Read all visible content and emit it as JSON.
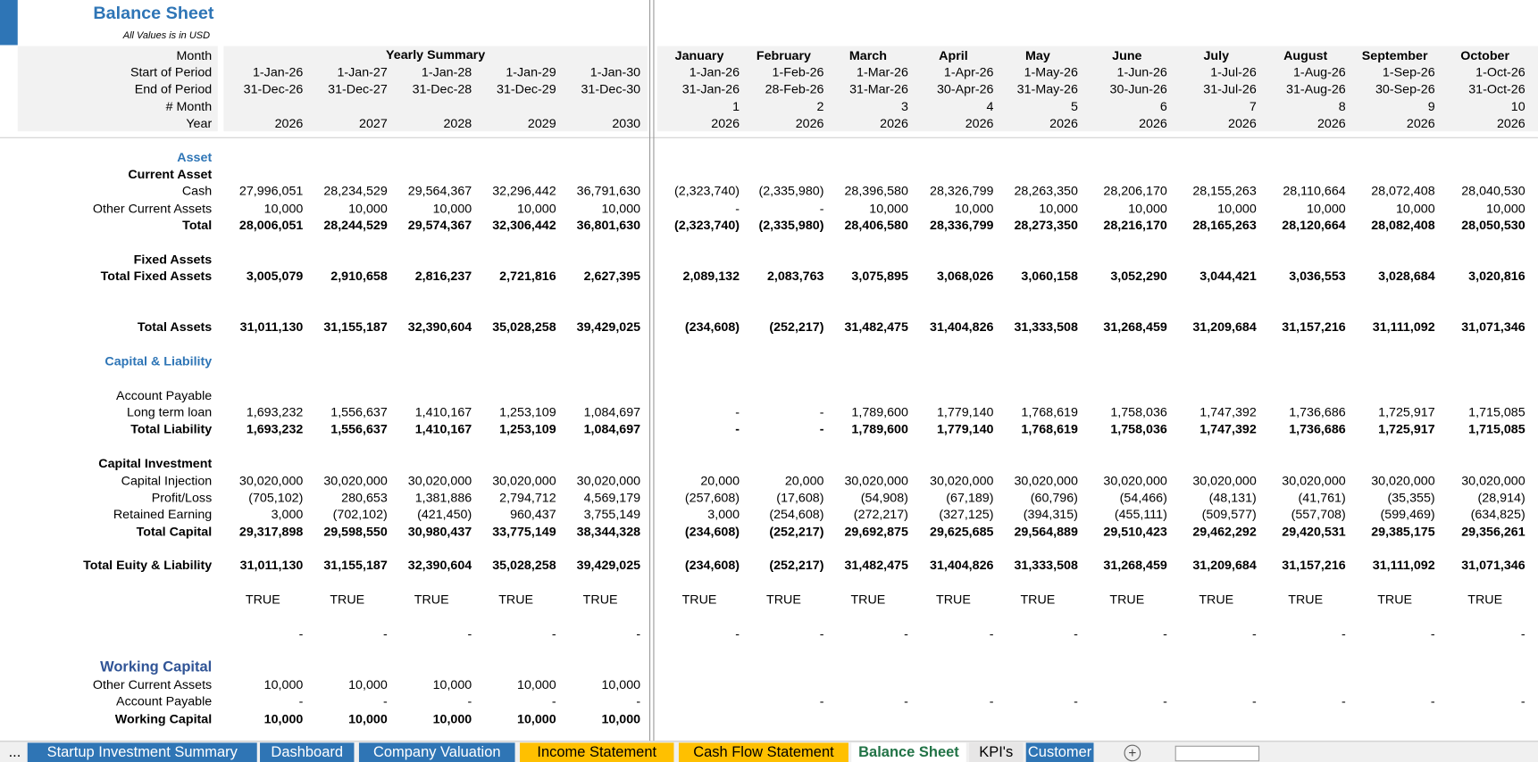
{
  "header": {
    "title": "Balance Sheet",
    "subtitle": "All Values is in USD",
    "yearly_heading": "Yearly Summary"
  },
  "rows": [
    {
      "label": "Month",
      "style": "header",
      "monthly": [
        "January",
        "February",
        "March",
        "April",
        "May",
        "June",
        "July",
        "August",
        "September",
        "October"
      ]
    },
    {
      "label": "Start of Period",
      "style": "header",
      "yearly": [
        "1-Jan-26",
        "1-Jan-27",
        "1-Jan-28",
        "1-Jan-29",
        "1-Jan-30"
      ],
      "monthly": [
        "1-Jan-26",
        "1-Feb-26",
        "1-Mar-26",
        "1-Apr-26",
        "1-May-26",
        "1-Jun-26",
        "1-Jul-26",
        "1-Aug-26",
        "1-Sep-26",
        "1-Oct-26"
      ]
    },
    {
      "label": "End of Period",
      "style": "header",
      "yearly": [
        "31-Dec-26",
        "31-Dec-27",
        "31-Dec-28",
        "31-Dec-29",
        "31-Dec-30"
      ],
      "monthly": [
        "31-Jan-26",
        "28-Feb-26",
        "31-Mar-26",
        "30-Apr-26",
        "31-May-26",
        "30-Jun-26",
        "31-Jul-26",
        "31-Aug-26",
        "30-Sep-26",
        "31-Oct-26"
      ]
    },
    {
      "label": "# Month",
      "style": "header",
      "monthly": [
        "1",
        "2",
        "3",
        "4",
        "5",
        "6",
        "7",
        "8",
        "9",
        "10"
      ]
    },
    {
      "label": "Year",
      "style": "header",
      "yearly": [
        "2026",
        "2027",
        "2028",
        "2029",
        "2030"
      ],
      "monthly": [
        "2026",
        "2026",
        "2026",
        "2026",
        "2026",
        "2026",
        "2026",
        "2026",
        "2026",
        "2026"
      ]
    },
    {
      "label": "Asset",
      "style": "section"
    },
    {
      "label": "Current Asset",
      "style": "bold"
    },
    {
      "label": "Cash",
      "style": "normal",
      "yearly": [
        "27,996,051",
        "28,234,529",
        "29,564,367",
        "32,296,442",
        "36,791,630"
      ],
      "monthly": [
        "(2,323,740)",
        "(2,335,980)",
        "28,396,580",
        "28,326,799",
        "28,263,350",
        "28,206,170",
        "28,155,263",
        "28,110,664",
        "28,072,408",
        "28,040,530"
      ]
    },
    {
      "label": "Other Current Assets",
      "style": "normal",
      "yearly": [
        "10,000",
        "10,000",
        "10,000",
        "10,000",
        "10,000"
      ],
      "monthly": [
        "-",
        "-",
        "10,000",
        "10,000",
        "10,000",
        "10,000",
        "10,000",
        "10,000",
        "10,000",
        "10,000"
      ]
    },
    {
      "label": "Total",
      "style": "bold",
      "yearly": [
        "28,006,051",
        "28,244,529",
        "29,574,367",
        "32,306,442",
        "36,801,630"
      ],
      "monthly": [
        "(2,323,740)",
        "(2,335,980)",
        "28,406,580",
        "28,336,799",
        "28,273,350",
        "28,216,170",
        "28,165,263",
        "28,120,664",
        "28,082,408",
        "28,050,530"
      ]
    },
    {
      "label": "Fixed Assets",
      "style": "bold"
    },
    {
      "label": "Total Fixed Assets",
      "style": "bold",
      "yearly": [
        "3,005,079",
        "2,910,658",
        "2,816,237",
        "2,721,816",
        "2,627,395"
      ],
      "monthly": [
        "2,089,132",
        "2,083,763",
        "3,075,895",
        "3,068,026",
        "3,060,158",
        "3,052,290",
        "3,044,421",
        "3,036,553",
        "3,028,684",
        "3,020,816"
      ]
    },
    {
      "label": "Total Assets",
      "style": "bold",
      "yearly": [
        "31,011,130",
        "31,155,187",
        "32,390,604",
        "35,028,258",
        "39,429,025"
      ],
      "monthly": [
        "(234,608)",
        "(252,217)",
        "31,482,475",
        "31,404,826",
        "31,333,508",
        "31,268,459",
        "31,209,684",
        "31,157,216",
        "31,111,092",
        "31,071,346"
      ]
    },
    {
      "label": "Capital & Liability",
      "style": "section"
    },
    {
      "label": "Account Payable",
      "style": "normal"
    },
    {
      "label": "Long term loan",
      "style": "normal",
      "yearly": [
        "1,693,232",
        "1,556,637",
        "1,410,167",
        "1,253,109",
        "1,084,697"
      ],
      "monthly": [
        "-",
        "-",
        "1,789,600",
        "1,779,140",
        "1,768,619",
        "1,758,036",
        "1,747,392",
        "1,736,686",
        "1,725,917",
        "1,715,085"
      ]
    },
    {
      "label": "Total Liability",
      "style": "bold",
      "yearly": [
        "1,693,232",
        "1,556,637",
        "1,410,167",
        "1,253,109",
        "1,084,697"
      ],
      "monthly": [
        "-",
        "-",
        "1,789,600",
        "1,779,140",
        "1,768,619",
        "1,758,036",
        "1,747,392",
        "1,736,686",
        "1,725,917",
        "1,715,085"
      ]
    },
    {
      "label": "Capital Investment",
      "style": "bold"
    },
    {
      "label": "Capital Injection",
      "style": "normal",
      "yearly": [
        "30,020,000",
        "30,020,000",
        "30,020,000",
        "30,020,000",
        "30,020,000"
      ],
      "monthly": [
        "20,000",
        "20,000",
        "30,020,000",
        "30,020,000",
        "30,020,000",
        "30,020,000",
        "30,020,000",
        "30,020,000",
        "30,020,000",
        "30,020,000"
      ]
    },
    {
      "label": "Profit/Loss",
      "style": "normal",
      "yearly": [
        "(705,102)",
        "280,653",
        "1,381,886",
        "2,794,712",
        "4,569,179"
      ],
      "monthly": [
        "(257,608)",
        "(17,608)",
        "(54,908)",
        "(67,189)",
        "(60,796)",
        "(54,466)",
        "(48,131)",
        "(41,761)",
        "(35,355)",
        "(28,914)"
      ]
    },
    {
      "label": "Retained Earning",
      "style": "normal",
      "yearly": [
        "3,000",
        "(702,102)",
        "(421,450)",
        "960,437",
        "3,755,149"
      ],
      "monthly": [
        "3,000",
        "(254,608)",
        "(272,217)",
        "(327,125)",
        "(394,315)",
        "(455,111)",
        "(509,577)",
        "(557,708)",
        "(599,469)",
        "(634,825)"
      ]
    },
    {
      "label": "Total Capital",
      "style": "bold",
      "yearly": [
        "29,317,898",
        "29,598,550",
        "30,980,437",
        "33,775,149",
        "38,344,328"
      ],
      "monthly": [
        "(234,608)",
        "(252,217)",
        "29,692,875",
        "29,625,685",
        "29,564,889",
        "29,510,423",
        "29,462,292",
        "29,420,531",
        "29,385,175",
        "29,356,261"
      ]
    },
    {
      "label": "Total Euity & Liability",
      "style": "bold",
      "yearly": [
        "31,011,130",
        "31,155,187",
        "32,390,604",
        "35,028,258",
        "39,429,025"
      ],
      "monthly": [
        "(234,608)",
        "(252,217)",
        "31,482,475",
        "31,404,826",
        "31,333,508",
        "31,268,459",
        "31,209,684",
        "31,157,216",
        "31,111,092",
        "31,071,346"
      ]
    },
    {
      "style": "check",
      "yearly": [
        "TRUE",
        "TRUE",
        "TRUE",
        "TRUE",
        "TRUE"
      ],
      "monthly": [
        "TRUE",
        "TRUE",
        "TRUE",
        "TRUE",
        "TRUE",
        "TRUE",
        "TRUE",
        "TRUE",
        "TRUE",
        "TRUE"
      ]
    },
    {
      "style": "normal",
      "yearly": [
        "-",
        "-",
        "-",
        "-",
        "-"
      ],
      "monthly": [
        "-",
        "-",
        "-",
        "-",
        "-",
        "-",
        "-",
        "-",
        "-",
        "-"
      ]
    },
    {
      "label": "Working Capital",
      "style": "section-large"
    },
    {
      "label": "Other Current Assets",
      "style": "normal",
      "yearly": [
        "10,000",
        "10,000",
        "10,000",
        "10,000",
        "10,000"
      ]
    },
    {
      "label": "Account Payable",
      "style": "normal",
      "yearly": [
        "-",
        "-",
        "-",
        "-",
        "-"
      ],
      "monthly": [
        null,
        "-",
        "-",
        "-",
        "-",
        "-",
        "-",
        "-",
        "-",
        "-"
      ]
    },
    {
      "label": "Working Capital",
      "style": "bold",
      "yearly": [
        "10,000",
        "10,000",
        "10,000",
        "10,000",
        "10,000"
      ]
    }
  ],
  "tabs": [
    {
      "label": "...",
      "color": "#f0f0f0"
    },
    {
      "label": "Startup Investment Summary",
      "color": "#2f75b5"
    },
    {
      "label": "Dashboard",
      "color": "#2f75b5"
    },
    {
      "label": "Company Valuation",
      "color": "#2f75b5"
    },
    {
      "label": "Income Statement",
      "color": "#ffc000"
    },
    {
      "label": "Cash Flow Statement",
      "color": "#ffc000"
    },
    {
      "label": "Balance Sheet",
      "color": "#ffffff"
    },
    {
      "label": "KPI's",
      "color": "#e7e6e6"
    },
    {
      "label": "Customer",
      "color": "#2f75b5"
    }
  ]
}
